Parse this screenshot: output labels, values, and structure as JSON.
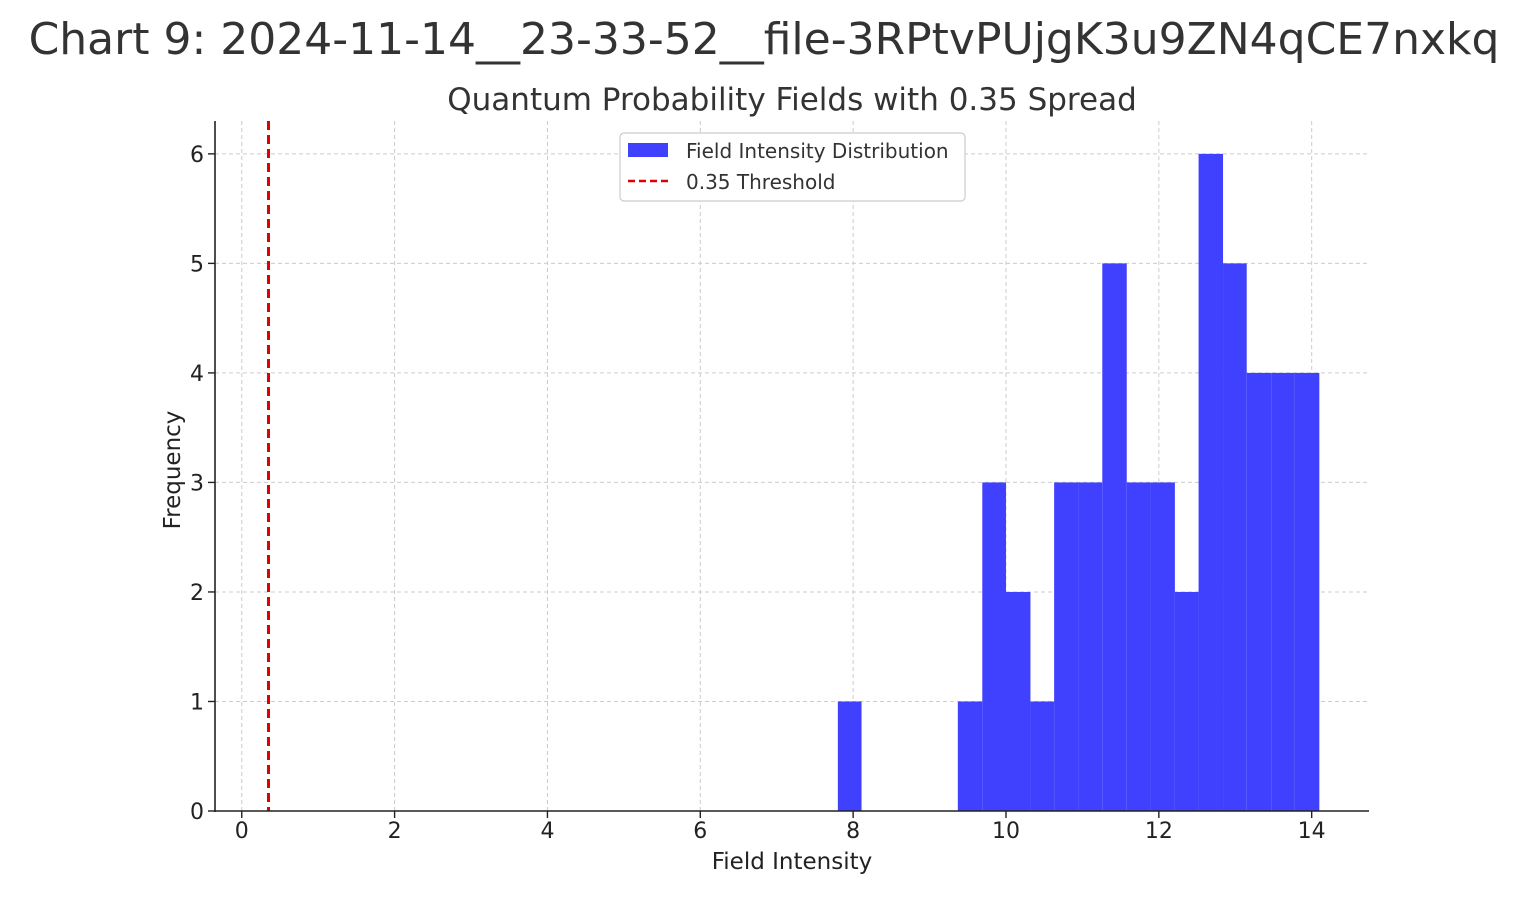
{
  "page_title": "Chart 9: 2024-11-14__23-33-52__file-3RPtvPUjgK3u9ZN4qCE7nxkq",
  "chart_data": {
    "type": "bar",
    "title": "Quantum Probability Fields with 0.35 Spread",
    "xlabel": "Field Intensity",
    "ylabel": "Frequency",
    "xlim": [
      -0.35,
      14.75
    ],
    "ylim": [
      0,
      6.3
    ],
    "xticks": [
      0,
      2,
      4,
      6,
      8,
      10,
      12,
      14
    ],
    "yticks": [
      0,
      1,
      2,
      3,
      4,
      5,
      6
    ],
    "grid": true,
    "legend_position": "top-center",
    "series": [
      {
        "name": "Field Intensity Distribution",
        "kind": "histogram",
        "color": "#4040ff",
        "bins": [
          {
            "x0": 7.8,
            "x1": 8.11,
            "count": 1
          },
          {
            "x0": 9.37,
            "x1": 9.69,
            "count": 1
          },
          {
            "x0": 9.69,
            "x1": 10.0,
            "count": 3
          },
          {
            "x0": 10.0,
            "x1": 10.32,
            "count": 2
          },
          {
            "x0": 10.32,
            "x1": 10.63,
            "count": 1
          },
          {
            "x0": 10.63,
            "x1": 10.95,
            "count": 3
          },
          {
            "x0": 10.95,
            "x1": 11.26,
            "count": 3
          },
          {
            "x0": 11.26,
            "x1": 11.58,
            "count": 5
          },
          {
            "x0": 11.58,
            "x1": 11.89,
            "count": 3
          },
          {
            "x0": 11.89,
            "x1": 12.21,
            "count": 3
          },
          {
            "x0": 12.21,
            "x1": 12.52,
            "count": 2
          },
          {
            "x0": 12.52,
            "x1": 12.84,
            "count": 6
          },
          {
            "x0": 12.84,
            "x1": 13.15,
            "count": 5
          },
          {
            "x0": 13.15,
            "x1": 13.47,
            "count": 4
          },
          {
            "x0": 13.47,
            "x1": 13.78,
            "count": 4
          },
          {
            "x0": 13.78,
            "x1": 14.1,
            "count": 4
          }
        ]
      },
      {
        "name": "0.35 Threshold",
        "kind": "vline",
        "x": 0.35,
        "color": "#e00000",
        "style": "dashed"
      }
    ]
  }
}
